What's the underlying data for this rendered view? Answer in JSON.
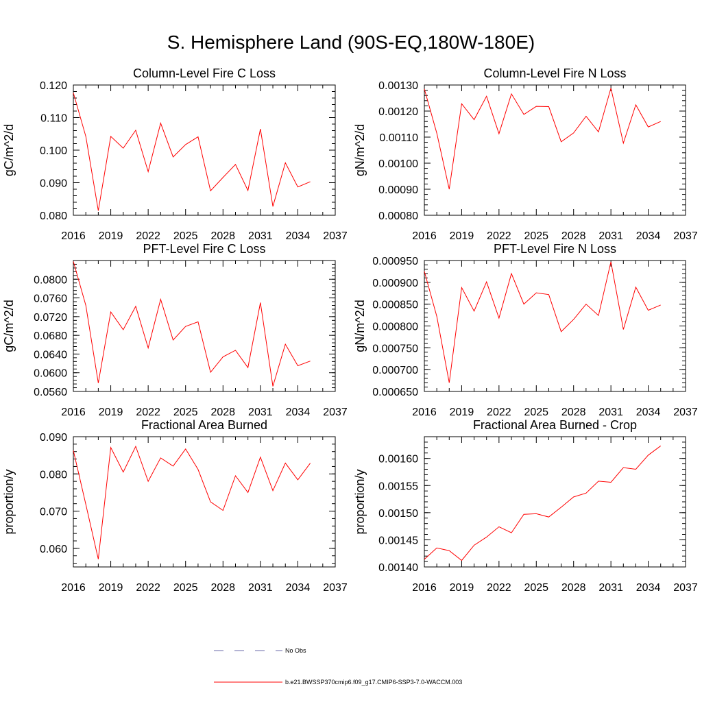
{
  "title": "S. Hemisphere Land (90S-EQ,180W-180E)",
  "colors": {
    "series": "#ff0000",
    "obs": "#6a6aa8",
    "axis": "#000000"
  },
  "legend": {
    "obs_label": "No Obs",
    "model_label": "b.e21.BWSSP370cmip6.f09_g17.CMIP6-SSP3-7.0-WACCM.003"
  },
  "chart_data": [
    {
      "type": "line",
      "title": "Column-Level Fire C Loss",
      "ylabel": "gC/m^2/d",
      "xlabel": "",
      "xlim": [
        2016,
        2037
      ],
      "x_ticks": [
        "2016",
        "2019",
        "2022",
        "2025",
        "2028",
        "2031",
        "2034",
        "2037"
      ],
      "ylim": [
        0.08,
        0.12
      ],
      "y_ticks": [
        "0.080",
        "0.090",
        "0.100",
        "0.110",
        "0.120"
      ],
      "y_tick_values": [
        0.08,
        0.09,
        0.1,
        0.11,
        0.12
      ],
      "x": [
        2016,
        2017,
        2018,
        2019,
        2020,
        2021,
        2022,
        2023,
        2024,
        2025,
        2026,
        2027,
        2028,
        2029,
        2030,
        2031,
        2032,
        2033,
        2034,
        2035
      ],
      "values": [
        0.1176,
        0.1042,
        0.0814,
        0.1042,
        0.1006,
        0.1061,
        0.0934,
        0.1083,
        0.0979,
        0.1017,
        0.1041,
        0.0875,
        0.0916,
        0.0956,
        0.0876,
        0.1065,
        0.0827,
        0.0961,
        0.0887,
        0.0903
      ]
    },
    {
      "type": "line",
      "title": "Column-Level Fire N Loss",
      "ylabel": "gN/m^2/d",
      "xlabel": "",
      "xlim": [
        2016,
        2037
      ],
      "x_ticks": [
        "2016",
        "2019",
        "2022",
        "2025",
        "2028",
        "2031",
        "2034",
        "2037"
      ],
      "ylim": [
        0.0008,
        0.0013
      ],
      "y_ticks": [
        "0.00080",
        "0.00090",
        "0.00100",
        "0.00110",
        "0.00120",
        "0.00130"
      ],
      "y_tick_values": [
        0.0008,
        0.0009,
        0.001,
        0.0011,
        0.0012,
        0.0013
      ],
      "x": [
        2016,
        2017,
        2018,
        2019,
        2020,
        2021,
        2022,
        2023,
        2024,
        2025,
        2026,
        2027,
        2028,
        2029,
        2030,
        2031,
        2032,
        2033,
        2034,
        2035
      ],
      "values": [
        0.001285,
        0.001115,
        0.0009,
        0.001228,
        0.001167,
        0.001257,
        0.001113,
        0.001266,
        0.001187,
        0.001218,
        0.001217,
        0.001082,
        0.001116,
        0.00118,
        0.00112,
        0.001288,
        0.001077,
        0.001224,
        0.001139,
        0.00116
      ]
    },
    {
      "type": "line",
      "title": "PFT-Level Fire C Loss",
      "ylabel": "gC/m^2/d",
      "xlabel": "",
      "xlim": [
        2016,
        2037
      ],
      "x_ticks": [
        "2016",
        "2019",
        "2022",
        "2025",
        "2028",
        "2031",
        "2034",
        "2037"
      ],
      "ylim": [
        0.056,
        0.084
      ],
      "y_ticks": [
        "0.0560",
        "0.0600",
        "0.0640",
        "0.0680",
        "0.0720",
        "0.0760",
        "0.0800"
      ],
      "y_tick_values": [
        0.056,
        0.06,
        0.064,
        0.068,
        0.072,
        0.076,
        0.08
      ],
      "x": [
        2016,
        2017,
        2018,
        2019,
        2020,
        2021,
        2022,
        2023,
        2024,
        2025,
        2026,
        2027,
        2028,
        2029,
        2030,
        2031,
        2032,
        2033,
        2034,
        2035
      ],
      "values": [
        0.0838,
        0.0744,
        0.0578,
        0.073,
        0.0692,
        0.0742,
        0.0653,
        0.0757,
        0.067,
        0.0699,
        0.0709,
        0.0601,
        0.0634,
        0.0648,
        0.0611,
        0.075,
        0.0571,
        0.0661,
        0.0615,
        0.0625
      ]
    },
    {
      "type": "line",
      "title": "PFT-Level Fire N Loss",
      "ylabel": "gN/m^2/d",
      "xlabel": "",
      "xlim": [
        2016,
        2037
      ],
      "x_ticks": [
        "2016",
        "2019",
        "2022",
        "2025",
        "2028",
        "2031",
        "2034",
        "2037"
      ],
      "ylim": [
        0.00065,
        0.00095
      ],
      "y_ticks": [
        "0.000650",
        "0.000700",
        "0.000750",
        "0.000800",
        "0.000850",
        "0.000900",
        "0.000950"
      ],
      "y_tick_values": [
        0.00065,
        0.0007,
        0.00075,
        0.0008,
        0.00085,
        0.0009,
        0.00095
      ],
      "x": [
        2016,
        2017,
        2018,
        2019,
        2020,
        2021,
        2022,
        2023,
        2024,
        2025,
        2026,
        2027,
        2028,
        2029,
        2030,
        2031,
        2032,
        2033,
        2034,
        2035
      ],
      "values": [
        0.000925,
        0.000822,
        0.00067,
        0.000888,
        0.000834,
        0.000901,
        0.000818,
        0.00092,
        0.00085,
        0.000876,
        0.000872,
        0.000787,
        0.000815,
        0.00085,
        0.000824,
        0.000947,
        0.000792,
        0.000889,
        0.000836,
        0.000848
      ]
    },
    {
      "type": "line",
      "title": "Fractional Area Burned",
      "ylabel": "proportion/y",
      "xlabel": "",
      "xlim": [
        2016,
        2037
      ],
      "x_ticks": [
        "2016",
        "2019",
        "2022",
        "2025",
        "2028",
        "2031",
        "2034",
        "2037"
      ],
      "ylim": [
        0.055,
        0.09
      ],
      "y_ticks": [
        "0.060",
        "0.070",
        "0.080",
        "0.090"
      ],
      "y_tick_values": [
        0.06,
        0.07,
        0.08,
        0.09
      ],
      "x": [
        2016,
        2017,
        2018,
        2019,
        2020,
        2021,
        2022,
        2023,
        2024,
        2025,
        2026,
        2027,
        2028,
        2029,
        2030,
        2031,
        2032,
        2033,
        2034,
        2035
      ],
      "values": [
        0.0863,
        0.0718,
        0.0571,
        0.0871,
        0.0805,
        0.0874,
        0.078,
        0.0843,
        0.0821,
        0.0867,
        0.0812,
        0.0725,
        0.0702,
        0.0795,
        0.075,
        0.0845,
        0.0755,
        0.0829,
        0.0784,
        0.0829
      ]
    },
    {
      "type": "line",
      "title": "Fractional Area Burned - Crop",
      "ylabel": "proportion/y",
      "xlabel": "",
      "xlim": [
        2016,
        2037
      ],
      "x_ticks": [
        "2016",
        "2019",
        "2022",
        "2025",
        "2028",
        "2031",
        "2034",
        "2037"
      ],
      "ylim": [
        0.0014,
        0.00164
      ],
      "y_ticks": [
        "0.00140",
        "0.00145",
        "0.00150",
        "0.00155",
        "0.00160"
      ],
      "y_tick_values": [
        0.0014,
        0.00145,
        0.0015,
        0.00155,
        0.0016
      ],
      "x": [
        2016,
        2017,
        2018,
        2019,
        2020,
        2021,
        2022,
        2023,
        2024,
        2025,
        2026,
        2027,
        2028,
        2029,
        2030,
        2031,
        2032,
        2033,
        2034,
        2035
      ],
      "values": [
        0.001414,
        0.001435,
        0.00143,
        0.001412,
        0.00144,
        0.001455,
        0.001474,
        0.001463,
        0.001497,
        0.001498,
        0.001492,
        0.00151,
        0.001529,
        0.001536,
        0.001558,
        0.001556,
        0.001583,
        0.00158,
        0.001606,
        0.001623
      ]
    }
  ]
}
